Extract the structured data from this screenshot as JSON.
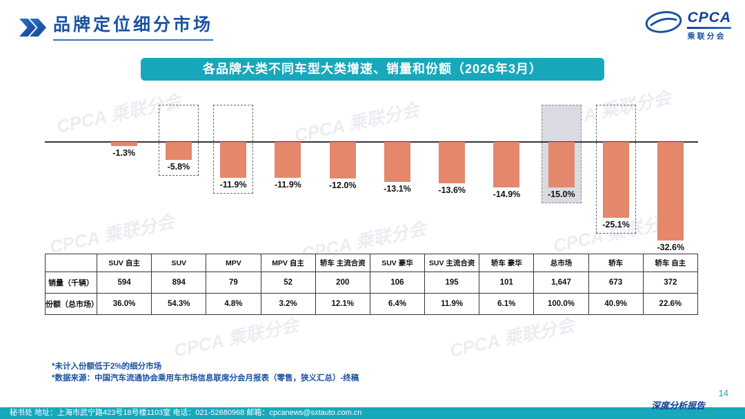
{
  "page": {
    "title": "品牌定位细分市场",
    "page_number": "14",
    "report_label": "深度分析报告"
  },
  "logo": {
    "name": "CPCA",
    "subtitle": "乘联分会"
  },
  "banner": {
    "title": "各品牌大类不同车型大类增速、销量和份额（2026年3月）"
  },
  "chart_data": {
    "type": "bar",
    "title": "各品牌大类不同车型大类增速、销量和份额（2026年3月）",
    "value_unit": "%",
    "categories": [
      "SUV 自主",
      "SUV",
      "MPV",
      "MPV 自主",
      "轿车 主流合资",
      "SUV 豪华",
      "SUV 主流合资",
      "轿车 豪华",
      "总市场",
      "轿车",
      "轿车 自主"
    ],
    "series": [
      {
        "name": "同比增速",
        "values": [
          -1.3,
          -5.8,
          -11.9,
          -11.9,
          -12.0,
          -13.1,
          -13.6,
          -14.9,
          -15.0,
          -25.1,
          -32.6
        ]
      }
    ],
    "value_labels": [
      "-1.3%",
      "-5.8%",
      "-11.9%",
      "-11.9%",
      "-12.0%",
      "-13.1%",
      "-13.6%",
      "-14.9%",
      "-15.0%",
      "-25.1%",
      "-32.6%"
    ],
    "highlighted_categories": [
      "SUV",
      "MPV",
      "总市场",
      "轿车"
    ],
    "filled_highlight_category": "总市场",
    "bar_color": "#E4876B",
    "ylim": [
      -35,
      0
    ],
    "baseline": 0,
    "grid": false,
    "legend": "none"
  },
  "table": {
    "corner_label": "",
    "columns": [
      "SUV 自主",
      "SUV",
      "MPV",
      "MPV 自主",
      "轿车 主流合资",
      "SUV 豪华",
      "SUV 主流合资",
      "轿车 豪华",
      "总市场",
      "轿车",
      "轿车 自主"
    ],
    "rows": [
      {
        "label": "销量（千辆）",
        "values": [
          "594",
          "894",
          "79",
          "52",
          "200",
          "106",
          "195",
          "101",
          "1,647",
          "673",
          "372"
        ]
      },
      {
        "label": "份额（总市场）",
        "values": [
          "36.0%",
          "54.3%",
          "4.8%",
          "3.2%",
          "12.1%",
          "6.4%",
          "11.9%",
          "6.1%",
          "100.0%",
          "40.9%",
          "22.6%"
        ]
      }
    ]
  },
  "notes": [
    "*未计入份额低于2%的细分市场",
    "*数据来源：中国汽车流通协会乘用车市场信息联席分会月报表（零售，狭义汇总）-终稿"
  ],
  "footer": {
    "text": "秘书处   地址：上海市武宁路423号18号楼1103室 电话：021-52680968   邮箱：cpcanews@sxtauto.com.cn"
  },
  "watermark": {
    "text": "CPCA 乘联分会"
  },
  "colors": {
    "teal": "#17A8BC",
    "blue": "#1A52A2",
    "bar": "#E4876B",
    "highlight_fill": "#DADAE2"
  }
}
